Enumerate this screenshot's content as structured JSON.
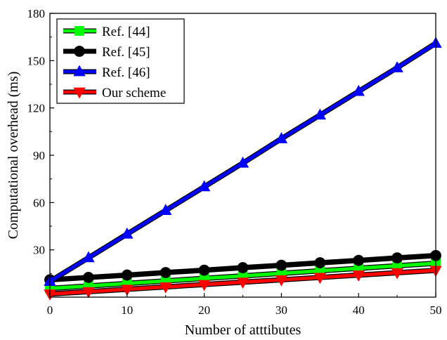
{
  "chart_data": {
    "type": "line",
    "title": "",
    "xlabel": "Number of atttibutes",
    "ylabel": "Computational overhead (ms)",
    "xlim": [
      0,
      50
    ],
    "ylim": [
      0,
      180
    ],
    "xticks": [
      0,
      10,
      20,
      30,
      40,
      50
    ],
    "yticks": [
      30,
      60,
      90,
      120,
      150,
      180
    ],
    "x": [
      0,
      5,
      10,
      15,
      20,
      25,
      30,
      35,
      40,
      45,
      50
    ],
    "grid": false,
    "legend_position": "top-left",
    "series": [
      {
        "name": "Ref. [44]",
        "color": "#00ff00",
        "marker": "square",
        "values": [
          5.5,
          7.1,
          8.7,
          10.3,
          11.9,
          13.5,
          15.1,
          16.7,
          18.3,
          19.9,
          21.5
        ]
      },
      {
        "name": "Ref. [45]",
        "color": "#000000",
        "marker": "circle",
        "values": [
          11,
          12.5,
          14.0,
          15.6,
          17.1,
          18.7,
          20.2,
          21.8,
          23.3,
          24.9,
          26.4
        ]
      },
      {
        "name": "Ref. [46]",
        "color": "#0000ff",
        "marker": "triangle-up",
        "values": [
          10,
          25,
          40,
          55,
          70,
          85,
          100.5,
          115.5,
          130.5,
          145.5,
          161
        ]
      },
      {
        "name": "Our scheme",
        "color": "#ff0000",
        "marker": "triangle-down",
        "values": [
          2,
          3.5,
          5,
          6.5,
          8,
          9.5,
          11,
          12.5,
          14,
          15.5,
          17
        ]
      }
    ]
  }
}
